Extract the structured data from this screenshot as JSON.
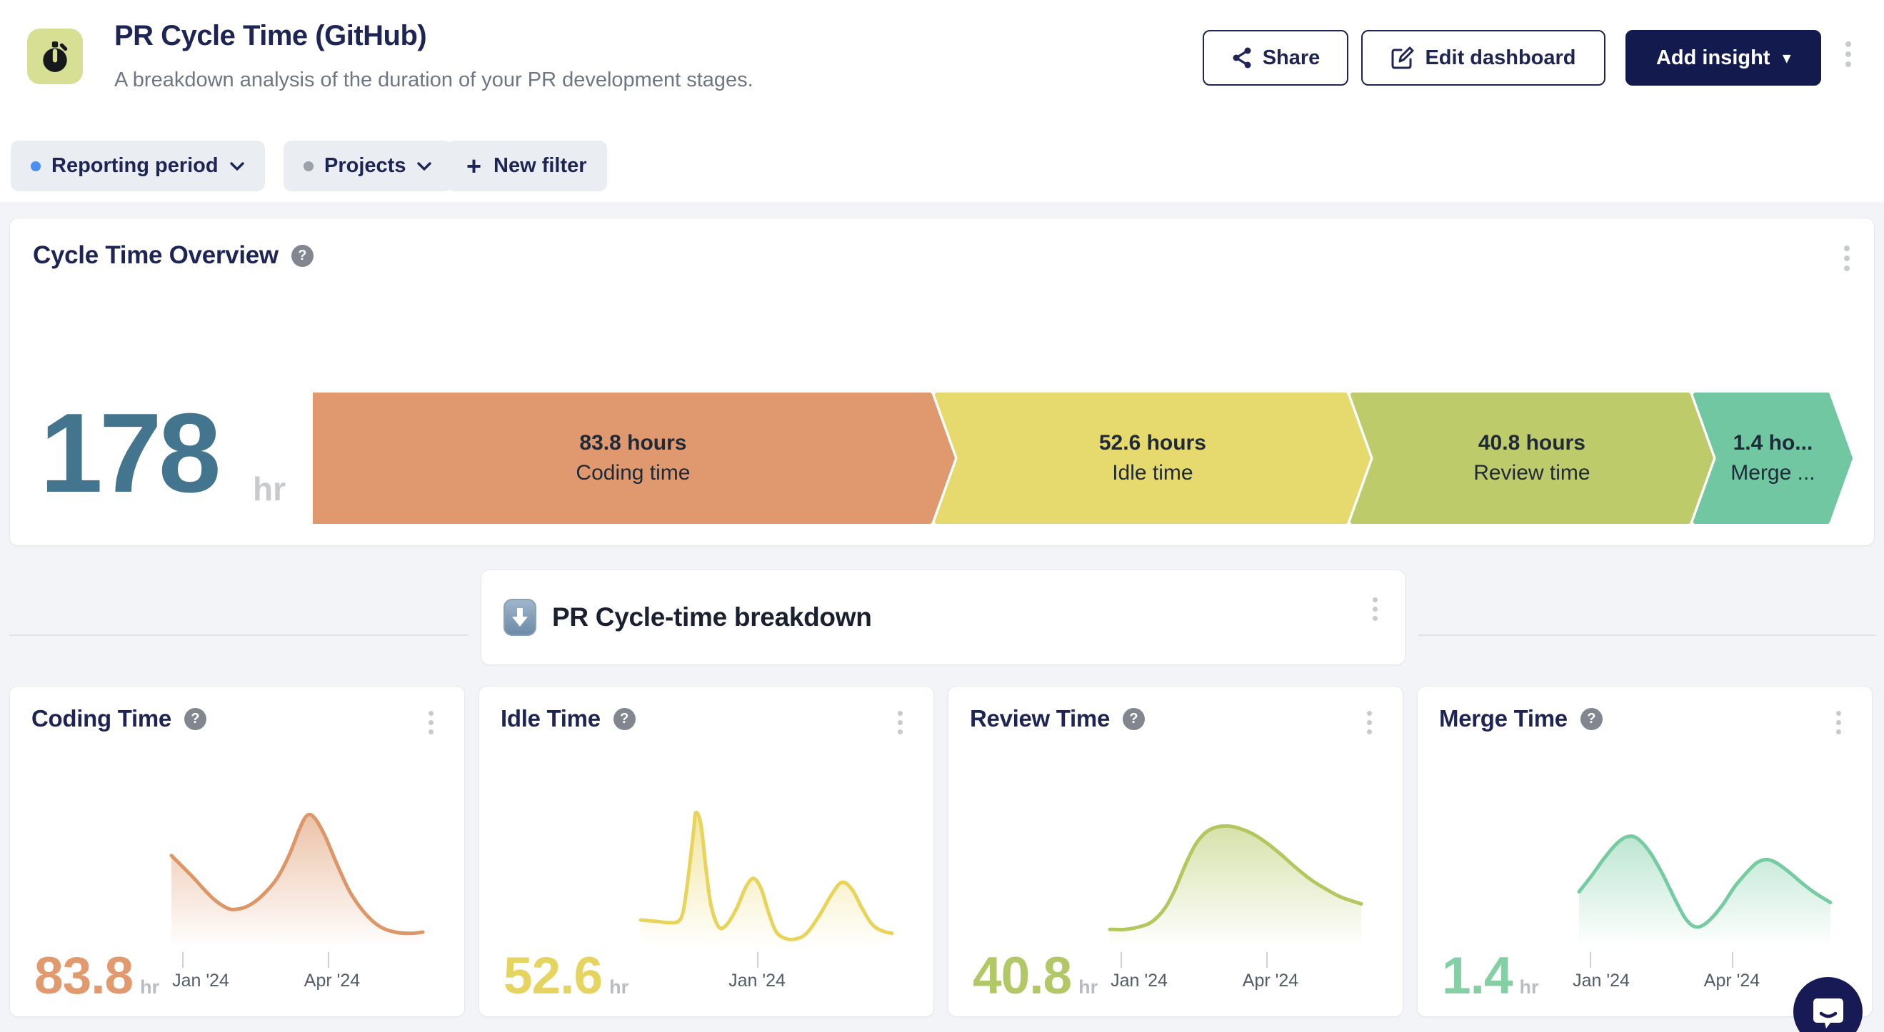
{
  "header": {
    "title": "PR Cycle Time (GitHub)",
    "subtitle": "A breakdown analysis of the duration of your PR development stages.",
    "buttons": {
      "share": "Share",
      "edit": "Edit dashboard",
      "add_insight": "Add insight"
    }
  },
  "filters": {
    "reporting_period": "Reporting period",
    "projects": "Projects",
    "new_filter": "New filter"
  },
  "breakdown_header": {
    "title": "PR Cycle-time breakdown"
  },
  "ui": {
    "help_glyph": "?",
    "plus_glyph": "+",
    "caret_glyph": "▾"
  },
  "cards": [
    {
      "title": "Coding Time"
    },
    {
      "title": "Idle Time"
    },
    {
      "title": "Review Time"
    },
    {
      "title": "Merge Time"
    }
  ],
  "chart_data": [
    {
      "type": "bar",
      "variant": "funnel-stages",
      "title": "Cycle Time Overview",
      "total": {
        "value": "178",
        "unit": "hr"
      },
      "categories": [
        "Coding time",
        "Idle time",
        "Review time",
        "Merge time"
      ],
      "values": [
        83.8,
        52.6,
        40.8,
        1.4
      ],
      "value_unit": "hours",
      "segment_labels": [
        [
          "83.8 hours",
          "Coding time"
        ],
        [
          "52.6 hours",
          "Idle time"
        ],
        [
          "40.8 hours",
          "Review time"
        ],
        [
          "1.4 ho...",
          "Merge ..."
        ]
      ],
      "colors": [
        "#e0996e",
        "#e6d96d",
        "#bdcb6b",
        "#71c7a2"
      ],
      "widths_frac": [
        0.3995,
        0.2648,
        0.2176,
        0.0857
      ],
      "legend_position": "none",
      "grid": false
    },
    {
      "type": "area",
      "series_name": "Coding Time",
      "value": "83.8",
      "unit": "hr",
      "color": "#dd9668",
      "value_color": "#e09a6e",
      "x_tick_labels": [
        "Jan '24",
        "Apr '24"
      ],
      "ticks": [
        {
          "label": "Jan '24",
          "line": 0.05,
          "text": 0.12
        },
        {
          "label": "Apr '24",
          "line": 0.6,
          "text": 0.615
        }
      ],
      "points_norm_pct": [
        [
          0,
          65
        ],
        [
          8,
          50
        ],
        [
          16,
          34
        ],
        [
          22,
          26
        ],
        [
          26,
          25
        ],
        [
          31,
          28
        ],
        [
          36,
          35
        ],
        [
          42,
          48
        ],
        [
          47,
          66
        ],
        [
          51,
          85
        ],
        [
          54,
          95
        ],
        [
          57,
          93
        ],
        [
          61,
          80
        ],
        [
          66,
          58
        ],
        [
          71,
          38
        ],
        [
          77,
          22
        ],
        [
          83,
          12
        ],
        [
          89,
          8
        ],
        [
          95,
          7
        ],
        [
          100,
          8
        ]
      ]
    },
    {
      "type": "area",
      "series_name": "Idle Time",
      "value": "52.6",
      "unit": "hr",
      "color": "#e8d45a",
      "value_color": "#e5d45f",
      "x_tick_labels": [
        "Jan '24"
      ],
      "ticks": [
        {
          "label": "Jan '24",
          "line": 0.45,
          "text": 0.45
        }
      ],
      "points_norm_pct": [
        [
          0,
          17
        ],
        [
          6,
          16
        ],
        [
          11,
          15
        ],
        [
          15,
          16
        ],
        [
          17,
          24
        ],
        [
          19,
          50
        ],
        [
          21,
          82
        ],
        [
          22,
          97
        ],
        [
          24,
          88
        ],
        [
          26,
          55
        ],
        [
          28,
          28
        ],
        [
          31,
          12
        ],
        [
          34,
          13
        ],
        [
          38,
          25
        ],
        [
          42,
          42
        ],
        [
          45,
          48
        ],
        [
          48,
          40
        ],
        [
          51,
          22
        ],
        [
          54,
          8
        ],
        [
          58,
          3
        ],
        [
          62,
          3
        ],
        [
          66,
          7
        ],
        [
          71,
          20
        ],
        [
          76,
          36
        ],
        [
          80,
          45
        ],
        [
          84,
          40
        ],
        [
          88,
          26
        ],
        [
          92,
          14
        ],
        [
          96,
          9
        ],
        [
          100,
          7
        ]
      ]
    },
    {
      "type": "area",
      "series_name": "Review Time",
      "value": "40.8",
      "unit": "hr",
      "color": "#b3c75f",
      "value_color": "#b2c765",
      "x_tick_labels": [
        "Jan '24",
        "Apr '24"
      ],
      "ticks": [
        {
          "label": "Jan '24",
          "line": 0.05,
          "text": 0.12
        },
        {
          "label": "Apr '24",
          "line": 0.6,
          "text": 0.615
        }
      ],
      "points_norm_pct": [
        [
          0,
          10
        ],
        [
          6,
          10
        ],
        [
          12,
          12
        ],
        [
          17,
          16
        ],
        [
          22,
          26
        ],
        [
          26,
          40
        ],
        [
          30,
          58
        ],
        [
          34,
          73
        ],
        [
          38,
          82
        ],
        [
          42,
          86
        ],
        [
          47,
          87
        ],
        [
          52,
          85
        ],
        [
          57,
          81
        ],
        [
          62,
          75
        ],
        [
          68,
          66
        ],
        [
          74,
          56
        ],
        [
          80,
          47
        ],
        [
          86,
          40
        ],
        [
          92,
          34
        ],
        [
          100,
          29
        ]
      ]
    },
    {
      "type": "area",
      "series_name": "Merge Time",
      "value": "1.4",
      "unit": "hr",
      "color": "#76cba2",
      "value_color": "#85cfa4",
      "x_tick_labels": [
        "Jan '24",
        "Apr '24"
      ],
      "ticks": [
        {
          "label": "Jan '24",
          "line": 0.05,
          "text": 0.095
        },
        {
          "label": "Apr '24",
          "line": 0.585,
          "text": 0.585
        }
      ],
      "points_norm_pct": [
        [
          0,
          38
        ],
        [
          5,
          50
        ],
        [
          10,
          63
        ],
        [
          15,
          74
        ],
        [
          19,
          79
        ],
        [
          23,
          78
        ],
        [
          28,
          68
        ],
        [
          33,
          52
        ],
        [
          38,
          33
        ],
        [
          42,
          19
        ],
        [
          45,
          13
        ],
        [
          48,
          12
        ],
        [
          52,
          17
        ],
        [
          57,
          28
        ],
        [
          62,
          42
        ],
        [
          67,
          53
        ],
        [
          71,
          60
        ],
        [
          75,
          62
        ],
        [
          79,
          59
        ],
        [
          84,
          52
        ],
        [
          89,
          44
        ],
        [
          94,
          37
        ],
        [
          100,
          30
        ]
      ]
    }
  ]
}
